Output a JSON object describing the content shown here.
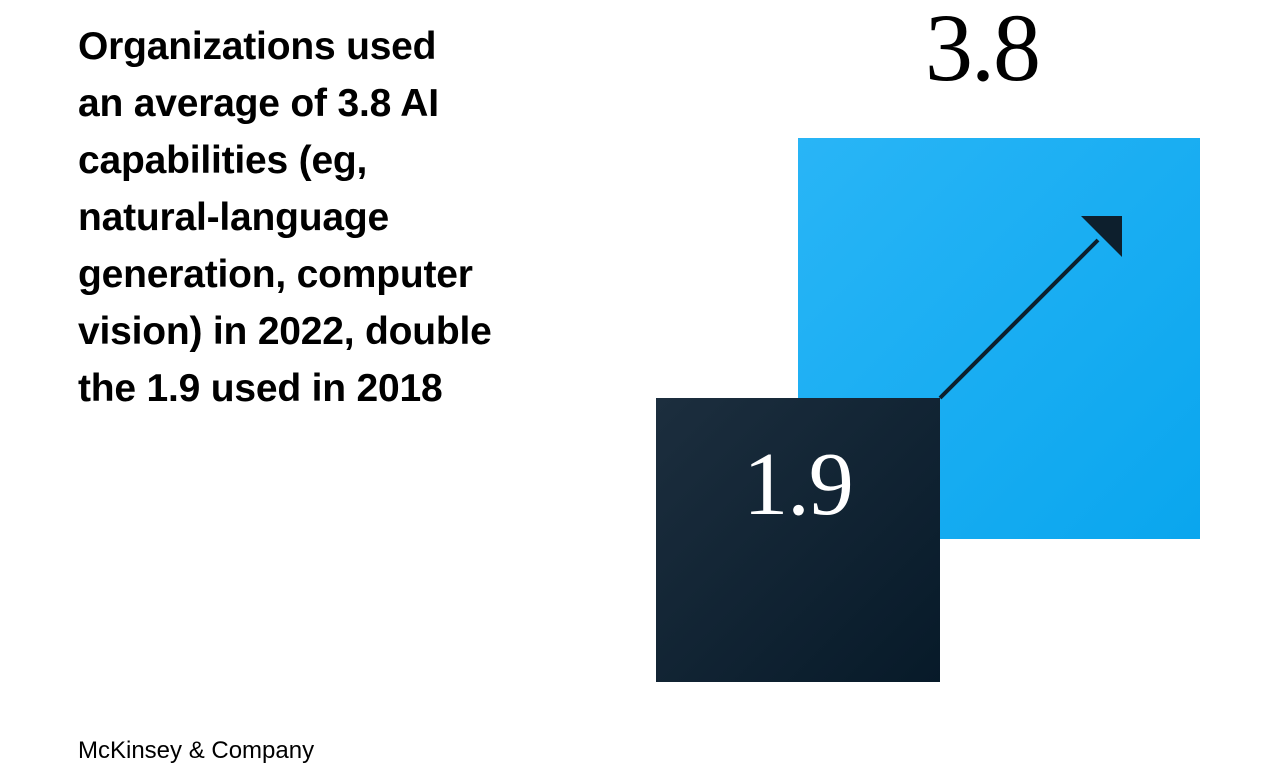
{
  "headline": {
    "lines": [
      "Organizations used",
      "an average of 3.8 AI",
      "capabilities (eg,",
      "natural-language",
      "generation, computer",
      "vision) in 2022, double",
      "the 1.9 used in 2018"
    ]
  },
  "values": {
    "value_2022": "3.8",
    "value_2018": "1.9"
  },
  "colors": {
    "square_2022_light": "#29b5f6",
    "square_2022_dark": "#0aa6ee",
    "square_2018_light": "#1c2e3e",
    "square_2018_dark": "#071a29",
    "arrow": "#0d1f2d"
  },
  "icons": {
    "arrow": "arrow-up-right-icon"
  },
  "footer": {
    "brand": "McKinsey & Company"
  }
}
